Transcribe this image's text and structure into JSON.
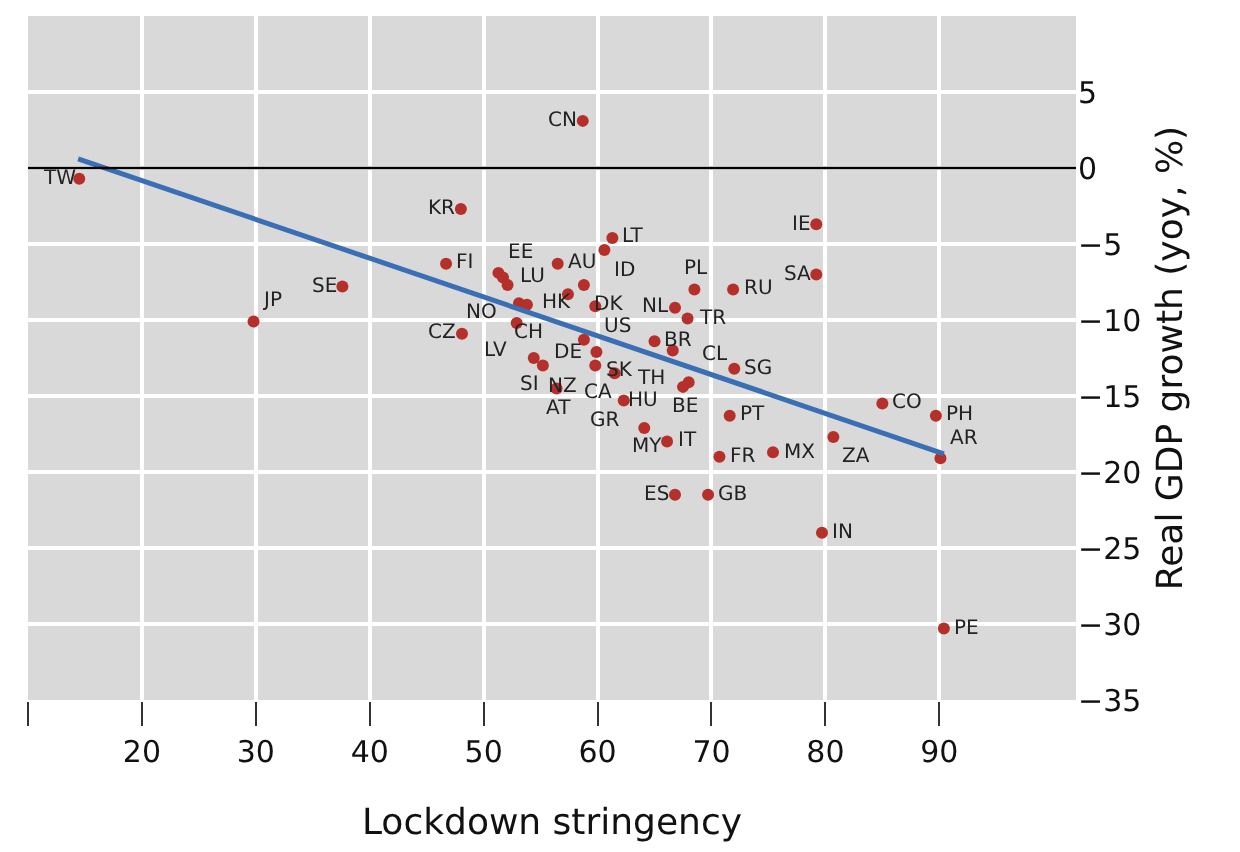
{
  "chart_data": {
    "type": "scatter",
    "xlabel": "Lockdown stringency",
    "ylabel": "Real GDP growth (yoy, %)",
    "xlim": [
      10,
      102
    ],
    "ylim": [
      -35,
      10
    ],
    "xticks": [
      {
        "value": 10,
        "label": null
      },
      20,
      30,
      40,
      50,
      60,
      70,
      80,
      90
    ],
    "yticks": [
      5,
      0,
      -5,
      -10,
      -15,
      -20,
      -25,
      -30,
      -35
    ],
    "grid": true,
    "marker": "circle",
    "ref_lines": [
      {
        "axis": "y",
        "value": 0,
        "color": "#000000"
      }
    ],
    "series": [
      {
        "color": "#b5302a",
        "x": [
          14.5,
          48.0,
          46.7,
          37.6,
          29.8,
          48.1,
          51.3,
          51.7,
          52.1,
          53.1,
          53.8,
          57.4,
          52.9,
          56.5,
          58.7,
          60.6,
          61.3,
          58.8,
          59.8,
          58.8,
          66.8,
          67.9,
          68.5,
          71.9,
          79.2,
          79.2,
          65.0,
          66.6,
          55.2,
          54.4,
          59.9,
          59.8,
          56.4,
          61.5,
          62.3,
          64.1,
          66.1,
          66.8,
          69.7,
          67.5,
          68.0,
          72.0,
          71.6,
          70.7,
          75.4,
          80.7,
          79.7,
          85.0,
          89.7,
          90.1,
          90.4
        ],
        "values": [
          -0.7,
          -2.7,
          -6.3,
          -7.8,
          -10.1,
          -10.9,
          -6.9,
          -7.2,
          -7.7,
          -8.9,
          -9.0,
          -8.3,
          -10.2,
          -6.3,
          3.1,
          -5.4,
          -4.6,
          -7.7,
          -9.1,
          -11.3,
          -9.2,
          -9.9,
          -8.0,
          -8.0,
          -3.7,
          -7.0,
          -11.4,
          -12.0,
          -13.0,
          -12.5,
          -12.1,
          -13.0,
          -14.5,
          -13.5,
          -15.3,
          -17.1,
          -18.0,
          -21.5,
          -21.5,
          -14.4,
          -14.1,
          -13.2,
          -16.3,
          -19.0,
          -18.7,
          -17.7,
          -24.0,
          -15.5,
          -16.3,
          -19.1,
          -30.3
        ],
        "value_labels": [
          "TW",
          "KR",
          "FI",
          "SE",
          "JP",
          "CZ",
          "EE",
          "LU",
          "NO",
          "HK",
          "CH",
          null,
          "LV",
          "AU",
          "CN",
          "ID",
          "LT",
          "DK",
          "US",
          "DE",
          "NL",
          "TR",
          "PL",
          "RU",
          "IE",
          "SA",
          "BR",
          "TH",
          "SI",
          "NZ",
          "SK",
          "CA",
          "AT",
          "HU",
          "GR",
          "MY",
          "IT",
          "ES",
          "GB",
          "BE",
          "CL",
          "SG",
          "PT",
          "FR",
          "MX",
          "ZA",
          "IN",
          "CO",
          "PH",
          "AR",
          "PE"
        ]
      },
      {
        "type": "line",
        "color": "#3a6fb5",
        "marker": "none",
        "line_style": "solid",
        "x": [
          14.4,
          90.4
        ],
        "values": [
          0.6,
          -18.8
        ]
      }
    ]
  }
}
